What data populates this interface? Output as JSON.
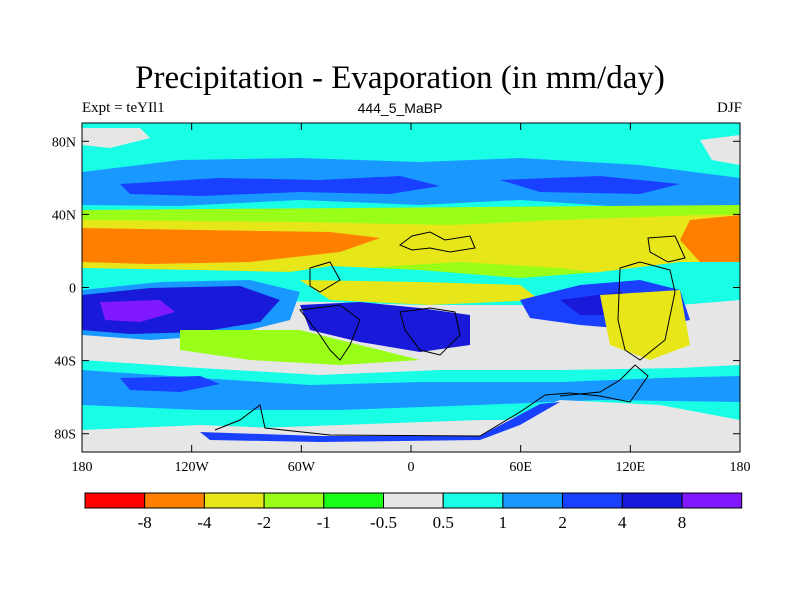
{
  "title": "Precipitation - Evaporation (in mm/day)",
  "left_label": "Expt = teYIl1",
  "center_label": "444_5_MaBP",
  "right_label": "DJF",
  "y_ticks": [
    {
      "label": "80N",
      "lat": 80
    },
    {
      "label": "40N",
      "lat": 40
    },
    {
      "label": "0",
      "lat": 0
    },
    {
      "label": "40S",
      "lat": -40
    },
    {
      "label": "80S",
      "lat": -80
    }
  ],
  "x_ticks": [
    {
      "label": "180",
      "lon": -180
    },
    {
      "label": "120W",
      "lon": -120
    },
    {
      "label": "60W",
      "lon": -60
    },
    {
      "label": "0",
      "lon": 0
    },
    {
      "label": "60E",
      "lon": 60
    },
    {
      "label": "120E",
      "lon": 120
    },
    {
      "label": "180",
      "lon": 180
    }
  ],
  "colorbar": {
    "colors": [
      "#ff0000",
      "#ff7f00",
      "#e6e619",
      "#99ff19",
      "#19ff19",
      "#e6e6e6",
      "#19ffe6",
      "#1999ff",
      "#1940ff",
      "#1919d9",
      "#8019ff"
    ],
    "labels": [
      "-8",
      "-4",
      "-2",
      "-1",
      "-0.5",
      "0.5",
      "1",
      "2",
      "4",
      "8"
    ]
  },
  "chart_data": {
    "type": "heatmap",
    "title": "Precipitation - Evaporation (in mm/day)",
    "xlim": [
      -180,
      180
    ],
    "ylim": [
      -90,
      90
    ],
    "contour_levels": [
      -8,
      -4,
      -2,
      -1,
      -0.5,
      0.5,
      1,
      2,
      4,
      8
    ],
    "colors": {
      "below_-8": "#ff0000",
      "-8_to_-4": "#ff7f00",
      "-4_to_-2": "#e6e619",
      "-2_to_-1": "#99ff19",
      "-1_to_-0.5": "#19ff19",
      "-0.5_to_0.5": "#e6e6e6",
      "0.5_to_1": "#19ffe6",
      "1_to_2": "#1999ff",
      "2_to_4": "#1940ff",
      "4_to_8": "#1919d9",
      "above_8": "#8019ff"
    }
  }
}
